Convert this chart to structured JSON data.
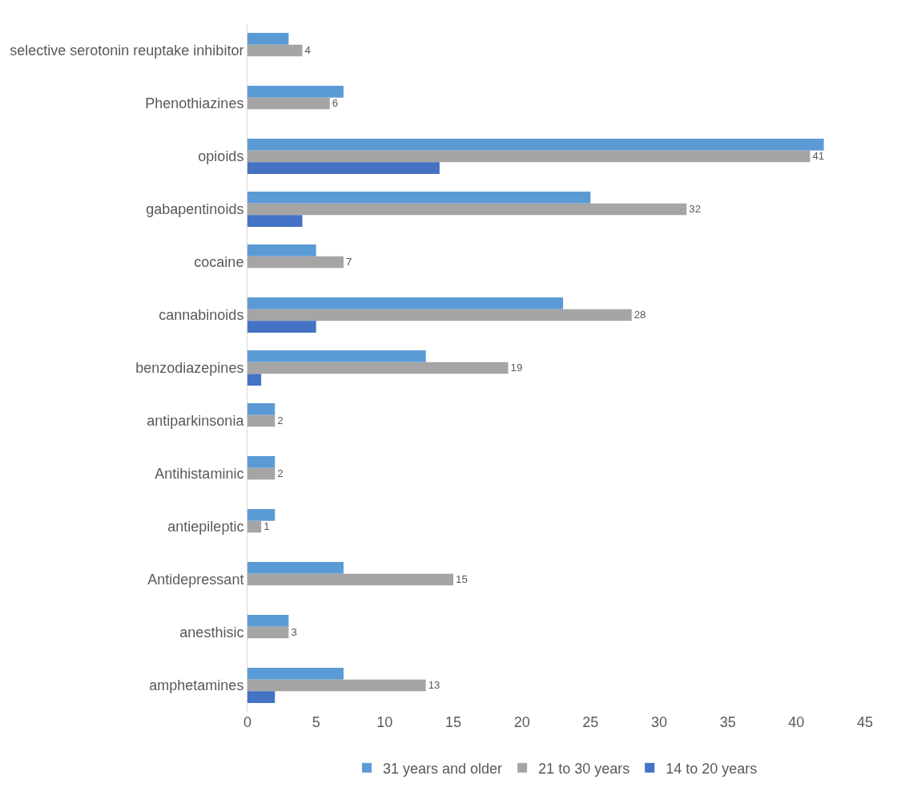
{
  "chart_data": {
    "type": "bar",
    "orientation": "horizontal",
    "categories": [
      "selective serotonin reuptake inhibitor",
      "Phenothiazines",
      "opioids",
      "gabapentinoids",
      "cocaine",
      "cannabinoids",
      "benzodiazepines",
      "antiparkinsonia",
      "Antihistaminic",
      "antiepileptic",
      "Antidepressant",
      "anesthisic",
      "amphetamines"
    ],
    "series": [
      {
        "name": "31 years and older",
        "color": "#5b9bd5",
        "values": [
          3,
          7,
          42,
          25,
          5,
          23,
          13,
          2,
          2,
          2,
          7,
          3,
          7
        ]
      },
      {
        "name": "21 to 30 years",
        "color": "#a5a5a5",
        "values": [
          4,
          6,
          41,
          32,
          7,
          28,
          19,
          2,
          2,
          1,
          15,
          3,
          13
        ],
        "value_labels": [
          "4",
          "6",
          "41",
          "32",
          "7",
          "28",
          "19",
          "2",
          "2",
          "1",
          "15",
          "3",
          "13"
        ]
      },
      {
        "name": "14 to 20 years",
        "color": "#4472c4",
        "values": [
          null,
          null,
          14,
          4,
          null,
          5,
          1,
          null,
          null,
          null,
          null,
          null,
          2
        ]
      }
    ],
    "xlim": [
      0,
      45
    ],
    "xticks": [
      0,
      5,
      10,
      15,
      20,
      25,
      30,
      35,
      40,
      45
    ],
    "grid": false,
    "legend": "bottom"
  }
}
